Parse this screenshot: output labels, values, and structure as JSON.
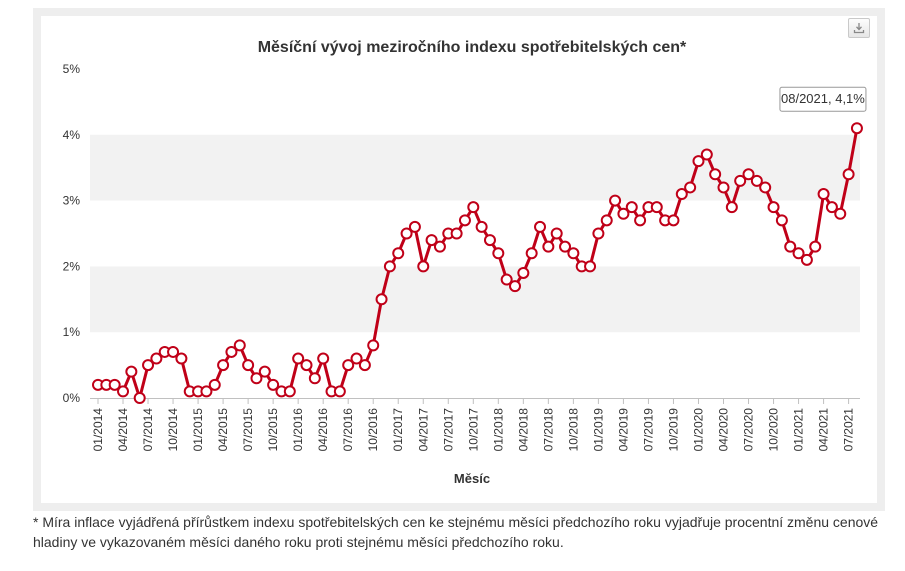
{
  "footnote": "* Míra inflace vyjádřená přírůstkem indexu spotřebitelských cen ke stejnému měsíci předchozího roku vyjadřuje procentní změnu cenové hladiny ve vykazovaném měsíci daného roku proti stejnému měsíci předchozího roku.",
  "download_icon": "download-icon",
  "colors": {
    "line": "#c00018",
    "band": "#f2f2f2",
    "tooltip_border": "#999999"
  },
  "tooltip": {
    "text": "08/2021, 4,1%"
  },
  "chart_data": {
    "type": "line",
    "title": "Měsíční vývoj meziročního indexu spotřebitelských cen*",
    "xlabel": "Měsíc",
    "ylabel": "",
    "ylim": [
      0,
      5
    ],
    "yticks": [
      0,
      1,
      2,
      3,
      4,
      5
    ],
    "ytick_labels": [
      "0%",
      "1%",
      "2%",
      "3%",
      "4%",
      "5%"
    ],
    "x": [
      "01/2014",
      "02/2014",
      "03/2014",
      "04/2014",
      "05/2014",
      "06/2014",
      "07/2014",
      "08/2014",
      "09/2014",
      "10/2014",
      "11/2014",
      "12/2014",
      "01/2015",
      "02/2015",
      "03/2015",
      "04/2015",
      "05/2015",
      "06/2015",
      "07/2015",
      "08/2015",
      "09/2015",
      "10/2015",
      "11/2015",
      "12/2015",
      "01/2016",
      "02/2016",
      "03/2016",
      "04/2016",
      "05/2016",
      "06/2016",
      "07/2016",
      "08/2016",
      "09/2016",
      "10/2016",
      "11/2016",
      "12/2016",
      "01/2017",
      "02/2017",
      "03/2017",
      "04/2017",
      "05/2017",
      "06/2017",
      "07/2017",
      "08/2017",
      "09/2017",
      "10/2017",
      "11/2017",
      "12/2017",
      "01/2018",
      "02/2018",
      "03/2018",
      "04/2018",
      "05/2018",
      "06/2018",
      "07/2018",
      "08/2018",
      "09/2018",
      "10/2018",
      "11/2018",
      "12/2018",
      "01/2019",
      "02/2019",
      "03/2019",
      "04/2019",
      "05/2019",
      "06/2019",
      "07/2019",
      "08/2019",
      "09/2019",
      "10/2019",
      "11/2019",
      "12/2019",
      "01/2020",
      "02/2020",
      "03/2020",
      "04/2020",
      "05/2020",
      "06/2020",
      "07/2020",
      "08/2020",
      "09/2020",
      "10/2020",
      "11/2020",
      "12/2020",
      "01/2021",
      "02/2021",
      "03/2021",
      "04/2021",
      "05/2021",
      "06/2021",
      "07/2021",
      "08/2021"
    ],
    "xtick_labels": [
      "01/2014",
      "04/2014",
      "07/2014",
      "10/2014",
      "01/2015",
      "04/2015",
      "07/2015",
      "10/2015",
      "01/2016",
      "04/2016",
      "07/2016",
      "10/2016",
      "01/2017",
      "04/2017",
      "07/2017",
      "10/2017",
      "01/2018",
      "04/2018",
      "07/2018",
      "10/2018",
      "01/2019",
      "04/2019",
      "07/2019",
      "10/2019",
      "01/2020",
      "04/2020",
      "07/2020",
      "10/2020",
      "01/2021",
      "04/2021",
      "07/2021"
    ],
    "series": [
      {
        "values": [
          0.2,
          0.2,
          0.2,
          0.1,
          0.4,
          0.0,
          0.5,
          0.6,
          0.7,
          0.7,
          0.6,
          0.1,
          0.1,
          0.1,
          0.2,
          0.5,
          0.7,
          0.8,
          0.5,
          0.3,
          0.4,
          0.2,
          0.1,
          0.1,
          0.6,
          0.5,
          0.3,
          0.6,
          0.1,
          0.1,
          0.5,
          0.6,
          0.5,
          0.8,
          1.5,
          2.0,
          2.2,
          2.5,
          2.6,
          2.0,
          2.4,
          2.3,
          2.5,
          2.5,
          2.7,
          2.9,
          2.6,
          2.4,
          2.2,
          1.8,
          1.7,
          1.9,
          2.2,
          2.6,
          2.3,
          2.5,
          2.3,
          2.2,
          2.0,
          2.0,
          2.5,
          2.7,
          3.0,
          2.8,
          2.9,
          2.7,
          2.9,
          2.9,
          2.7,
          2.7,
          3.1,
          3.2,
          3.6,
          3.7,
          3.4,
          3.2,
          2.9,
          3.3,
          3.4,
          3.3,
          3.2,
          2.9,
          2.7,
          2.3,
          2.2,
          2.1,
          2.3,
          3.1,
          2.9,
          2.8,
          3.4,
          4.1
        ]
      }
    ],
    "grid": "alternating bands",
    "legend": "none"
  }
}
